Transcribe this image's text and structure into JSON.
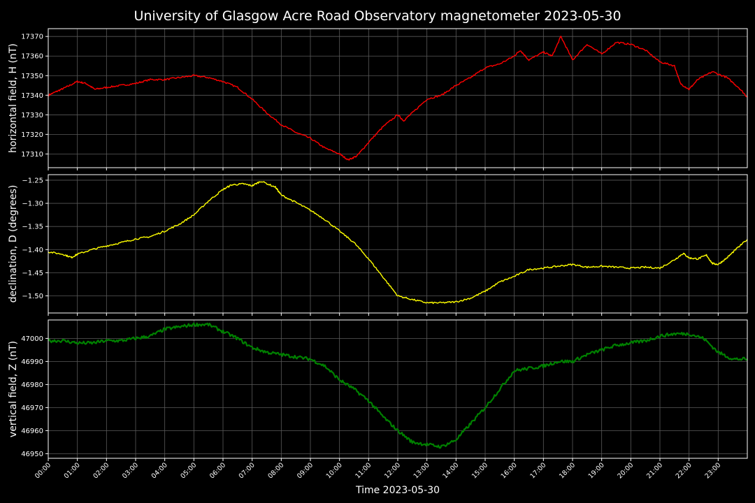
{
  "figure": {
    "title": "University of Glasgow Acre Road Observatory magnetometer 2023-05-30",
    "xlabel": "Time 2023-05-30"
  },
  "chart_data": [
    {
      "type": "line",
      "ylabel": "horizontal field, H (nT)",
      "color": "#ff0000",
      "ylim": [
        17303,
        17374
      ],
      "yticks": [
        17310,
        17320,
        17330,
        17340,
        17350,
        17360,
        17370
      ],
      "xlim_hours": [
        0,
        24
      ],
      "grid": true,
      "series": [
        {
          "x_hours": [
            0,
            0.3,
            0.6,
            1.0,
            1.3,
            1.6,
            2.0,
            2.5,
            3.0,
            3.5,
            4.0,
            4.5,
            5.0,
            5.5,
            6.0,
            6.5,
            7.0,
            7.5,
            8.0,
            8.5,
            9.0,
            9.5,
            10.0,
            10.3,
            10.6,
            11.0,
            11.5,
            12.0,
            12.2,
            12.5,
            13.0,
            13.5,
            14.0,
            14.5,
            15.0,
            15.5,
            16.0,
            16.2,
            16.5,
            17.0,
            17.3,
            17.6,
            18.0,
            18.5,
            19.0,
            19.5,
            20.0,
            20.5,
            21.0,
            21.5,
            21.7,
            22.0,
            22.3,
            22.8,
            23.3,
            23.7,
            24.0
          ],
          "y": [
            17340,
            17342,
            17344,
            17347,
            17346,
            17343,
            17344,
            17345,
            17346,
            17348,
            17348,
            17349,
            17350,
            17349,
            17347,
            17344,
            17338,
            17331,
            17325,
            17321,
            17318,
            17313,
            17310,
            17307,
            17309,
            17316,
            17324,
            17330,
            17327,
            17331,
            17338,
            17340,
            17345,
            17349,
            17354,
            17356,
            17360,
            17363,
            17358,
            17362,
            17360,
            17370,
            17358,
            17366,
            17361,
            17367,
            17366,
            17363,
            17357,
            17355,
            17346,
            17343,
            17348,
            17352,
            17349,
            17344,
            17339
          ]
        }
      ]
    },
    {
      "type": "line",
      "ylabel": "declination, D (degrees)",
      "color": "#ffff00",
      "ylim": [
        -1.537,
        -1.238
      ],
      "yticks": [
        -1.25,
        -1.3,
        -1.35,
        -1.4,
        -1.45,
        -1.5
      ],
      "xlim_hours": [
        0,
        24
      ],
      "grid": true,
      "series": [
        {
          "x_hours": [
            0,
            0.5,
            0.8,
            1.0,
            1.5,
            2.0,
            2.5,
            3.0,
            3.5,
            4.0,
            4.5,
            5.0,
            5.5,
            6.0,
            6.3,
            6.7,
            7.0,
            7.3,
            7.8,
            8.0,
            8.5,
            9.0,
            9.5,
            10.0,
            10.5,
            11.0,
            11.5,
            12.0,
            12.5,
            13.0,
            13.5,
            14.0,
            14.5,
            15.0,
            15.5,
            16.0,
            16.5,
            17.0,
            17.5,
            18.0,
            18.5,
            19.0,
            19.5,
            20.0,
            20.5,
            21.0,
            21.5,
            21.8,
            22.0,
            22.3,
            22.6,
            22.8,
            23.0,
            23.3,
            23.6,
            24.0
          ],
          "y": [
            -1.405,
            -1.41,
            -1.417,
            -1.41,
            -1.4,
            -1.392,
            -1.385,
            -1.377,
            -1.372,
            -1.36,
            -1.345,
            -1.325,
            -1.295,
            -1.27,
            -1.26,
            -1.258,
            -1.262,
            -1.252,
            -1.265,
            -1.282,
            -1.298,
            -1.315,
            -1.335,
            -1.36,
            -1.385,
            -1.42,
            -1.46,
            -1.5,
            -1.508,
            -1.515,
            -1.515,
            -1.513,
            -1.505,
            -1.49,
            -1.47,
            -1.458,
            -1.443,
            -1.44,
            -1.436,
            -1.432,
            -1.438,
            -1.436,
            -1.438,
            -1.44,
            -1.438,
            -1.44,
            -1.422,
            -1.408,
            -1.418,
            -1.42,
            -1.412,
            -1.43,
            -1.432,
            -1.418,
            -1.4,
            -1.378
          ]
        }
      ]
    },
    {
      "type": "line",
      "ylabel": "vertical field, Z (nT)",
      "color": "#008000",
      "ylim": [
        46948,
        47008
      ],
      "yticks": [
        46950,
        46960,
        46970,
        46980,
        46990,
        47000
      ],
      "xlim_hours": [
        0,
        24
      ],
      "grid": true,
      "series": [
        {
          "x_hours": [
            0,
            0.5,
            1.0,
            1.5,
            2.0,
            2.5,
            3.0,
            3.5,
            4.0,
            4.5,
            5.0,
            5.5,
            6.0,
            6.5,
            7.0,
            7.5,
            8.0,
            8.5,
            9.0,
            9.5,
            10.0,
            10.5,
            11.0,
            11.5,
            12.0,
            12.5,
            13.0,
            13.5,
            14.0,
            14.5,
            15.0,
            15.5,
            16.0,
            16.5,
            17.0,
            17.5,
            18.0,
            18.5,
            19.0,
            19.5,
            20.0,
            20.5,
            21.0,
            21.5,
            22.0,
            22.5,
            23.0,
            23.5,
            24.0
          ],
          "y": [
            46999,
            46999,
            46998,
            46998,
            46999,
            46999,
            47000,
            47001,
            47004,
            47005,
            47006,
            47006,
            47003,
            47000,
            46996,
            46994,
            46993,
            46992,
            46991,
            46988,
            46982,
            46978,
            46973,
            46966,
            46960,
            46955,
            46954,
            46953,
            46956,
            46963,
            46970,
            46978,
            46986,
            46987,
            46988,
            46990,
            46990,
            46993,
            46995,
            46997,
            46998,
            46999,
            47001,
            47002,
            47002,
            47000,
            46994,
            46991,
            46991
          ]
        }
      ]
    }
  ],
  "xaxis": {
    "tick_labels": [
      "00:00",
      "01:00",
      "02:00",
      "03:00",
      "04:00",
      "05:00",
      "06:00",
      "07:00",
      "08:00",
      "09:00",
      "10:00",
      "11:00",
      "12:00",
      "13:00",
      "14:00",
      "15:00",
      "16:00",
      "17:00",
      "18:00",
      "19:00",
      "20:00",
      "21:00",
      "22:00",
      "23:00"
    ]
  }
}
